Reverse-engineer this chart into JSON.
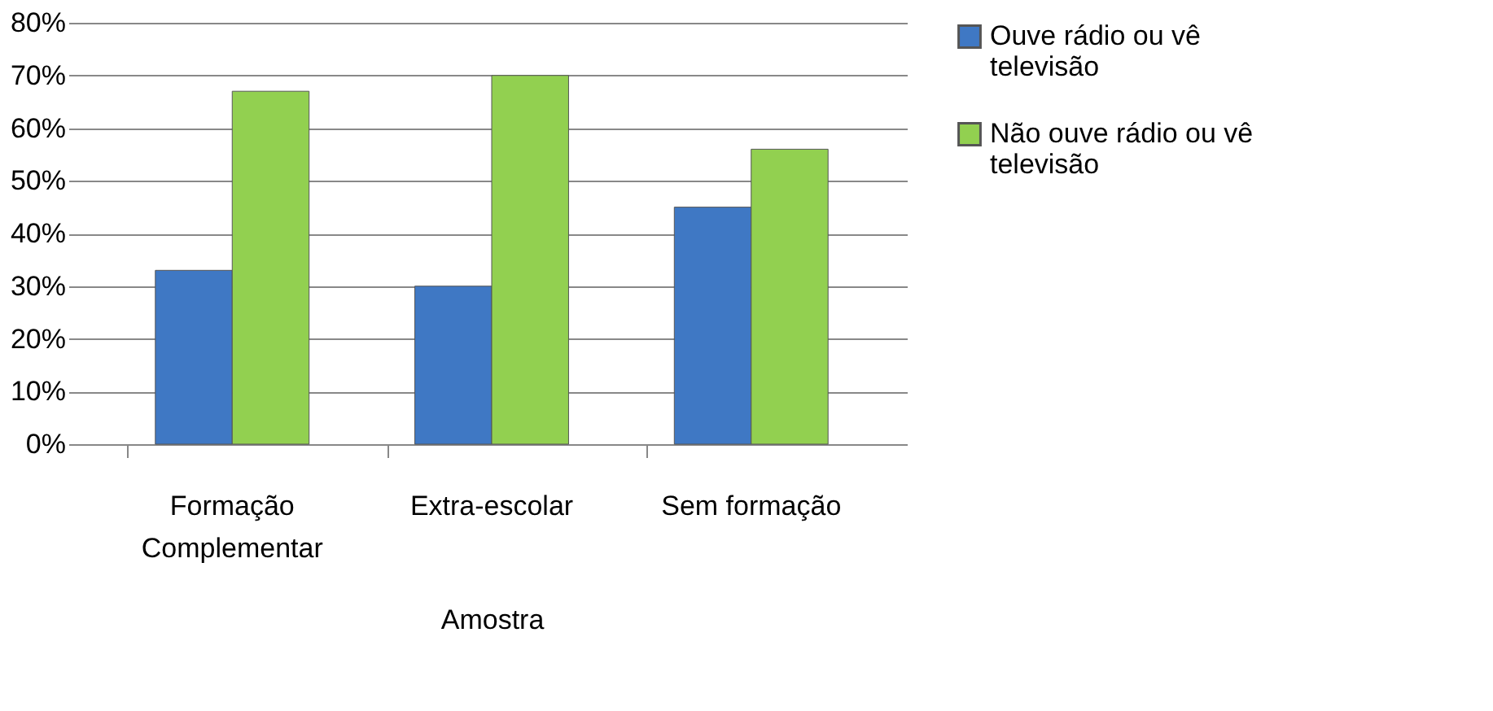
{
  "chart_data": {
    "type": "bar",
    "xlabel": "Amostra",
    "categories": [
      "Formação Complementar",
      "Extra-escolar",
      "Sem formação"
    ],
    "series": [
      {
        "name": "Ouve rádio ou vê televisão",
        "color": "#3f78c4",
        "values": [
          33,
          30,
          45
        ]
      },
      {
        "name": "Não ouve rádio ou vê televisão",
        "color": "#92d050",
        "values": [
          67,
          70,
          56
        ]
      }
    ],
    "ylim": [
      0,
      80
    ],
    "yticks": [
      {
        "value": 0,
        "label": "0%"
      },
      {
        "value": 10,
        "label": "10%"
      },
      {
        "value": 20,
        "label": "20%"
      },
      {
        "value": 30,
        "label": "30%"
      },
      {
        "value": 40,
        "label": "40%"
      },
      {
        "value": 50,
        "label": "50%"
      },
      {
        "value": 60,
        "label": "60%"
      },
      {
        "value": 70,
        "label": "70%"
      },
      {
        "value": 80,
        "label": "80%"
      }
    ],
    "grid": "y",
    "legend": "right"
  }
}
